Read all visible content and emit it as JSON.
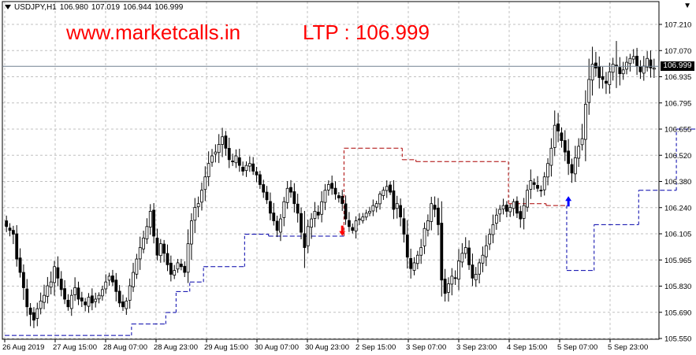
{
  "header": {
    "symbol": "USDJPY,H1",
    "open": "106.980",
    "high": "107.019",
    "low": "106.944",
    "close": "106.999"
  },
  "watermark": {
    "site": "www.marketcalls.in",
    "ltp": "LTP : 106.999",
    "color": "#ff0000"
  },
  "chart_data": {
    "type": "candlestick",
    "ylim": [
      105.57,
      107.28
    ],
    "y_ticks": [
      "107.210",
      "107.070",
      "106.935",
      "106.795",
      "106.655",
      "106.520",
      "106.380",
      "106.240",
      "106.105",
      "105.965",
      "105.830",
      "105.690",
      "105.550"
    ],
    "x_ticks": [
      "26 Aug 2019",
      "27 Aug 15:00",
      "28 Aug 07:00",
      "28 Aug 23:00",
      "29 Aug 15:00",
      "30 Aug 07:00",
      "30 Aug 23:00",
      "2 Sep 15:00",
      "3 Sep 07:00",
      "3 Sep 23:00",
      "4 Sep 15:00",
      "5 Sep 07:00",
      "5 Sep 23:00"
    ],
    "last_price": "106.999",
    "grid": true,
    "colors": {
      "bull": "#000000",
      "bear": "#000000",
      "stop_down": "#0000aa",
      "stop_up": "#aa0000",
      "buy_arrow": "#0000ff",
      "sell_arrow": "#ff0000"
    },
    "closes": [
      106.16,
      106.14,
      106.12,
      105.99,
      105.92,
      105.84,
      105.74,
      105.7,
      105.67,
      105.73,
      105.77,
      105.8,
      105.85,
      105.87,
      105.95,
      105.89,
      105.83,
      105.78,
      105.74,
      105.8,
      105.84,
      105.78,
      105.77,
      105.75,
      105.79,
      105.76,
      105.78,
      105.8,
      105.83,
      105.87,
      105.9,
      105.87,
      105.82,
      105.76,
      105.74,
      105.77,
      105.85,
      105.92,
      105.99,
      106.05,
      106.1,
      106.16,
      106.24,
      106.11,
      106.01,
      106.07,
      106.02,
      105.96,
      105.91,
      105.93,
      105.97,
      105.95,
      105.92,
      106.07,
      106.19,
      106.26,
      106.28,
      106.35,
      106.42,
      106.49,
      106.53,
      106.55,
      106.59,
      106.63,
      106.57,
      106.51,
      106.5,
      106.53,
      106.48,
      106.45,
      106.48,
      106.49,
      106.45,
      106.43,
      106.38,
      106.34,
      106.3,
      106.23,
      106.19,
      106.14,
      106.2,
      106.29,
      106.36,
      106.34,
      106.28,
      106.23,
      106.13,
      106.05,
      106.16,
      106.2,
      106.24,
      106.22,
      106.29,
      106.35,
      106.38,
      106.36,
      106.33,
      106.31,
      106.28,
      106.2,
      106.16,
      106.14,
      106.19,
      106.2,
      106.21,
      106.23,
      106.24,
      106.27,
      106.28,
      106.33,
      106.35,
      106.37,
      106.34,
      106.25,
      106.28,
      106.21,
      106.12,
      106.0,
      105.94,
      105.97,
      106.01,
      106.05,
      106.15,
      106.19,
      106.28,
      106.25,
      106.17,
      105.88,
      105.81,
      105.86,
      105.9,
      105.89,
      105.98,
      106.02,
      106.05,
      105.96,
      105.89,
      105.91,
      105.97,
      106.01,
      106.06,
      106.12,
      106.17,
      106.22,
      106.25,
      106.27,
      106.24,
      106.26,
      106.29,
      106.23,
      106.2,
      106.27,
      106.35,
      106.4,
      106.38,
      106.36,
      106.35,
      106.42,
      106.49,
      106.57,
      106.69,
      106.66,
      106.61,
      106.55,
      106.49,
      106.44,
      106.52,
      106.58,
      106.62,
      106.8,
      106.93,
      107.01,
      106.99,
      106.94,
      106.93,
      106.91,
      106.97,
      107.01,
      107.0,
      106.96,
      106.98,
      107.02,
      107.04,
      107.05,
      107.0,
      106.97,
      107.0,
      107.04,
      106.99,
      106.99
    ],
    "volatility": [
      0.05,
      0.06,
      0.07,
      0.09,
      0.08,
      0.1,
      0.09,
      0.08,
      0.08,
      0.08,
      0.07,
      0.07,
      0.08,
      0.08,
      0.09,
      0.08,
      0.07,
      0.07,
      0.06,
      0.06,
      0.07,
      0.06,
      0.06,
      0.05,
      0.05,
      0.05,
      0.05,
      0.05,
      0.05,
      0.06,
      0.06,
      0.06,
      0.07,
      0.06,
      0.05,
      0.05,
      0.06,
      0.07,
      0.08,
      0.08,
      0.07,
      0.08,
      0.09,
      0.1,
      0.08,
      0.07,
      0.07,
      0.07,
      0.06,
      0.06,
      0.06,
      0.06,
      0.05,
      0.1,
      0.11,
      0.09,
      0.07,
      0.08,
      0.08,
      0.08,
      0.07,
      0.07,
      0.08,
      0.09,
      0.08,
      0.07,
      0.06,
      0.06,
      0.06,
      0.06,
      0.05,
      0.05,
      0.05,
      0.05,
      0.06,
      0.06,
      0.07,
      0.07,
      0.07,
      0.07,
      0.07,
      0.08,
      0.08,
      0.07,
      0.06,
      0.07,
      0.09,
      0.18,
      0.08,
      0.08,
      0.07,
      0.06,
      0.07,
      0.07,
      0.06,
      0.06,
      0.06,
      0.05,
      0.05,
      0.06,
      0.06,
      0.05,
      0.05,
      0.05,
      0.04,
      0.04,
      0.04,
      0.05,
      0.05,
      0.05,
      0.05,
      0.05,
      0.05,
      0.07,
      0.07,
      0.08,
      0.09,
      0.1,
      0.08,
      0.07,
      0.07,
      0.08,
      0.09,
      0.09,
      0.1,
      0.09,
      0.1,
      0.18,
      0.1,
      0.08,
      0.08,
      0.07,
      0.09,
      0.08,
      0.08,
      0.09,
      0.09,
      0.07,
      0.07,
      0.07,
      0.07,
      0.07,
      0.07,
      0.07,
      0.06,
      0.06,
      0.06,
      0.05,
      0.05,
      0.06,
      0.07,
      0.08,
      0.08,
      0.08,
      0.07,
      0.06,
      0.06,
      0.07,
      0.08,
      0.09,
      0.1,
      0.09,
      0.08,
      0.08,
      0.08,
      0.08,
      0.09,
      0.1,
      0.1,
      0.16,
      0.16,
      0.14,
      0.1,
      0.08,
      0.08,
      0.07,
      0.09,
      0.09,
      0.3,
      0.14,
      0.09,
      0.08,
      0.07,
      0.07,
      0.06,
      0.06,
      0.07,
      0.07,
      0.08,
      0.07,
      0.07,
      0.07,
      0.07
    ],
    "stop_down": [
      {
        "from": 0,
        "to": 36,
        "value": 105.59
      },
      {
        "from": 37,
        "to": 46,
        "value": 105.65
      },
      {
        "from": 47,
        "to": 49,
        "value": 105.71
      },
      {
        "from": 50,
        "to": 53,
        "value": 105.82
      },
      {
        "from": 54,
        "to": 57,
        "value": 105.87
      },
      {
        "from": 58,
        "to": 69,
        "value": 105.95
      },
      {
        "from": 70,
        "to": 76,
        "value": 106.12
      },
      {
        "from": 77,
        "to": 98,
        "value": 106.11
      }
    ],
    "stop_up": [
      {
        "from": 99,
        "to": 115,
        "value": 106.57
      },
      {
        "from": 116,
        "to": 119,
        "value": 106.51
      },
      {
        "from": 120,
        "to": 146,
        "value": 106.5
      },
      {
        "from": 147,
        "to": 157,
        "value": 106.28
      },
      {
        "from": 158,
        "to": 163,
        "value": 106.27
      }
    ],
    "stop_down2": [
      {
        "from": 164,
        "to": 171,
        "value": 105.93
      },
      {
        "from": 172,
        "to": 184,
        "value": 106.17
      },
      {
        "from": 185,
        "to": 195,
        "value": 106.35
      },
      {
        "from": 196,
        "to": 201,
        "value": 106.67
      }
    ],
    "signals": [
      {
        "bar": 98,
        "dir": "sell",
        "price": 106.14
      },
      {
        "bar": 164,
        "dir": "buy",
        "price": 106.29
      }
    ]
  }
}
